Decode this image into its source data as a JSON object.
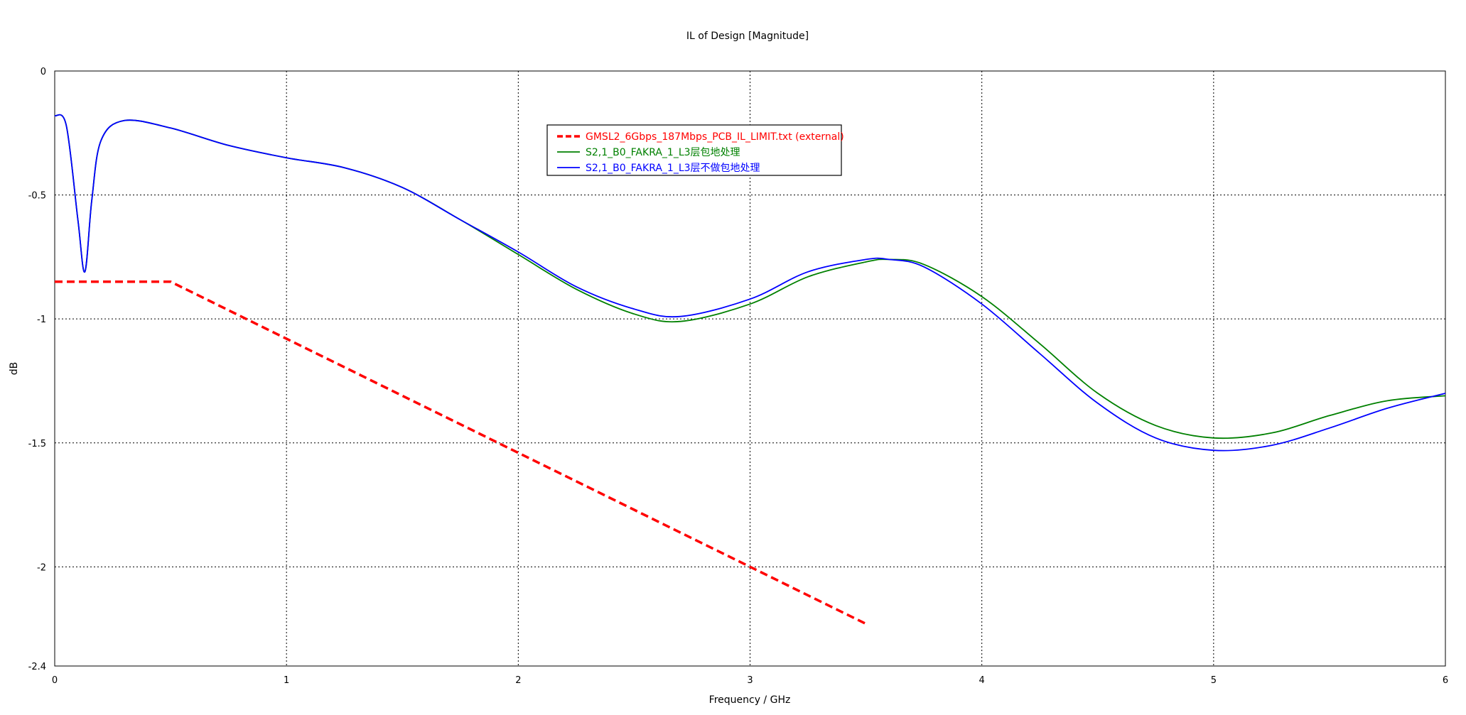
{
  "chart_data": {
    "type": "line",
    "title": "IL of Design [Magnitude]",
    "xlabel": "Frequency / GHz",
    "ylabel": "dB",
    "xlim": [
      0,
      6
    ],
    "ylim": [
      -2.4,
      0
    ],
    "xticks": [
      0,
      1,
      2,
      3,
      4,
      5,
      6
    ],
    "xtick_labels": [
      "0",
      "1",
      "2",
      "3",
      "4",
      "5",
      "6"
    ],
    "yticks": [
      0,
      -0.5,
      -1,
      -1.5,
      -2,
      -2.4
    ],
    "ytick_labels": [
      "0",
      "-0.5",
      "-1",
      "-1.5",
      "-2",
      "-2.4"
    ],
    "grid": true,
    "legend_position": "top-center",
    "series": [
      {
        "name": "GMSL2_6Gbps_187Mbps_PCB_IL_LIMIT.txt (external)",
        "color": "#ff0000",
        "style": "dashed",
        "x": [
          0,
          0.5,
          1,
          1.5,
          2,
          2.5,
          3,
          3.5
        ],
        "y": [
          -0.85,
          -0.85,
          -1.08,
          -1.31,
          -1.54,
          -1.77,
          -2.0,
          -2.23
        ]
      },
      {
        "name": "S2,1_B0_FAKRA_1_L3层包地处理",
        "color": "#008000",
        "style": "solid",
        "x": [
          0,
          0.05,
          0.1,
          0.13,
          0.16,
          0.2,
          0.3,
          0.5,
          0.75,
          1.0,
          1.25,
          1.5,
          1.75,
          2.0,
          2.25,
          2.5,
          2.7,
          3.0,
          3.25,
          3.5,
          3.6,
          3.75,
          4.0,
          4.25,
          4.5,
          4.75,
          5.0,
          5.25,
          5.5,
          5.75,
          6.0
        ],
        "y": [
          -0.18,
          -0.22,
          -0.6,
          -0.81,
          -0.52,
          -0.28,
          -0.2,
          -0.23,
          -0.3,
          -0.35,
          -0.39,
          -0.47,
          -0.6,
          -0.74,
          -0.88,
          -0.98,
          -1.01,
          -0.94,
          -0.83,
          -0.77,
          -0.76,
          -0.78,
          -0.91,
          -1.1,
          -1.3,
          -1.43,
          -1.48,
          -1.46,
          -1.39,
          -1.33,
          -1.31
        ]
      },
      {
        "name": "S2,1_B0_FAKRA_1_L3层不做包地处理",
        "color": "#0000ff",
        "style": "solid",
        "x": [
          0,
          0.05,
          0.1,
          0.13,
          0.16,
          0.2,
          0.3,
          0.5,
          0.75,
          1.0,
          1.25,
          1.5,
          1.75,
          2.0,
          2.25,
          2.5,
          2.7,
          3.0,
          3.25,
          3.5,
          3.6,
          3.75,
          4.0,
          4.25,
          4.5,
          4.75,
          5.0,
          5.25,
          5.5,
          5.75,
          6.0
        ],
        "y": [
          -0.18,
          -0.22,
          -0.6,
          -0.81,
          -0.52,
          -0.28,
          -0.2,
          -0.23,
          -0.3,
          -0.35,
          -0.39,
          -0.47,
          -0.6,
          -0.73,
          -0.87,
          -0.96,
          -0.99,
          -0.92,
          -0.81,
          -0.76,
          -0.76,
          -0.79,
          -0.94,
          -1.14,
          -1.34,
          -1.48,
          -1.53,
          -1.51,
          -1.44,
          -1.36,
          -1.3
        ]
      }
    ]
  }
}
